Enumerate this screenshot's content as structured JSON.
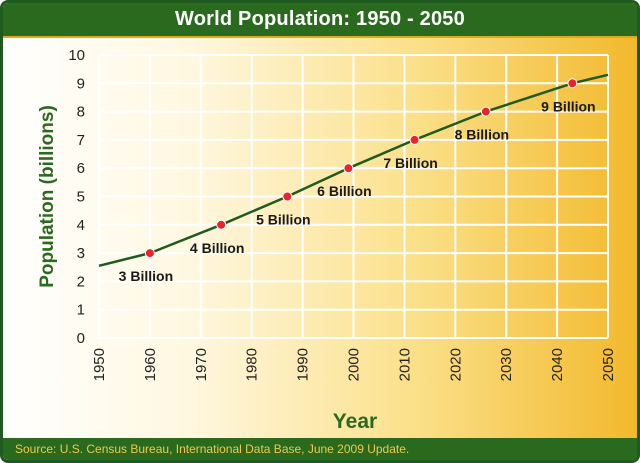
{
  "title": "World Population:  1950 - 2050",
  "source": "Source: U.S. Census Bureau, International Data Base, June 2009 Update.",
  "colors": {
    "title_bar": "#2a6a1e",
    "axis_title": "#2a6a1e",
    "line": "#1f5a1f",
    "marker": "#e8262a",
    "source_text": "#f1c84a",
    "background_right": "#f2b92c"
  },
  "chart_data": {
    "type": "line",
    "title": "World Population:  1950 - 2050",
    "xlabel": "Year",
    "ylabel": "Population (billions)",
    "xlim": [
      1950,
      2050
    ],
    "ylim": [
      0,
      10
    ],
    "grid": true,
    "x_ticks": [
      "1950",
      "1960",
      "1970",
      "1980",
      "1990",
      "2000",
      "2010",
      "2020",
      "2030",
      "2040",
      "2050"
    ],
    "y_ticks": [
      "0",
      "1",
      "2",
      "3",
      "4",
      "5",
      "6",
      "7",
      "8",
      "9",
      "10"
    ],
    "line": {
      "x": [
        1950,
        1960,
        1974,
        1987,
        1999,
        2012,
        2026,
        2043,
        2050
      ],
      "y": [
        2.55,
        3.0,
        4.0,
        5.0,
        6.0,
        7.0,
        8.0,
        9.0,
        9.3
      ]
    },
    "milestones": [
      {
        "x": 1960,
        "y": 3,
        "label": "3 Billion"
      },
      {
        "x": 1974,
        "y": 4,
        "label": "4 Billion"
      },
      {
        "x": 1987,
        "y": 5,
        "label": "5 Billion"
      },
      {
        "x": 1999,
        "y": 6,
        "label": "6 Billion"
      },
      {
        "x": 2012,
        "y": 7,
        "label": "7 Billion"
      },
      {
        "x": 2026,
        "y": 8,
        "label": "8 Billion"
      },
      {
        "x": 2043,
        "y": 9,
        "label": "9 Billion"
      }
    ]
  }
}
